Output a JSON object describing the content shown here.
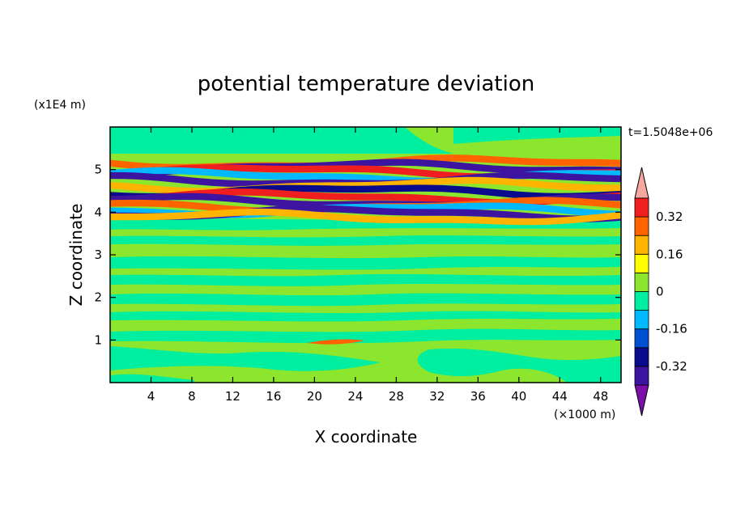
{
  "chart_data": {
    "type": "heatmap",
    "title": "potential temperature deviation",
    "xlabel": "X coordinate",
    "ylabel": "Z coordinate",
    "x_units": "(×1000 m)",
    "y_units": "(x1E4 m)",
    "time_label": "t=1.5048e+06",
    "xlim": [
      0,
      50
    ],
    "ylim": [
      0,
      6
    ],
    "x_ticks": [
      4,
      8,
      12,
      16,
      20,
      24,
      28,
      32,
      36,
      40,
      44,
      48
    ],
    "y_ticks": [
      1,
      2,
      3,
      4,
      5
    ],
    "colorbar": {
      "levels": [
        -0.48,
        -0.4,
        -0.32,
        -0.24,
        -0.16,
        -0.08,
        0,
        0.08,
        0.16,
        0.24,
        0.32,
        0.4
      ],
      "colors": [
        "#7b0fa8",
        "#3c14a0",
        "#0a0a8c",
        "#0050d2",
        "#00b9ff",
        "#00ee9f",
        "#8ce62d",
        "#ffff00",
        "#ffb400",
        "#ff6400",
        "#f01e1e",
        "#f5a8a0"
      ],
      "tick_labels": [
        "-0.32",
        "-0.16",
        "0",
        "0.16",
        "0.32"
      ],
      "tick_values": [
        -0.32,
        -0.16,
        0,
        0.16,
        0.32
      ]
    },
    "bands": [
      {
        "z": 5.15,
        "x": [
          0,
          50
        ],
        "value": 0.24
      },
      {
        "z": 5.05,
        "x": [
          0,
          50
        ],
        "value": -0.4
      },
      {
        "z": 4.95,
        "x": [
          0,
          50
        ],
        "value": 0.32
      },
      {
        "z": 4.85,
        "x": [
          0,
          50
        ],
        "value": -0.16
      },
      {
        "z": 4.75,
        "x": [
          0,
          50
        ],
        "value": -0.4
      },
      {
        "z": 4.62,
        "x": [
          0,
          50
        ],
        "value": 0.16
      },
      {
        "z": 4.48,
        "x": [
          0,
          50
        ],
        "value": -0.32
      },
      {
        "z": 4.35,
        "x": [
          0,
          50
        ],
        "value": 0.32
      },
      {
        "z": 4.25,
        "x": [
          0,
          50
        ],
        "value": -0.4
      },
      {
        "z": 4.15,
        "x": [
          0,
          50
        ],
        "value": 0.24
      },
      {
        "z": 4.05,
        "x": [
          0,
          50
        ],
        "value": -0.16
      },
      {
        "z": 3.97,
        "x": [
          0,
          50
        ],
        "value": -0.4
      },
      {
        "z": 3.88,
        "x": [
          0,
          50
        ],
        "value": 0.16
      }
    ]
  }
}
